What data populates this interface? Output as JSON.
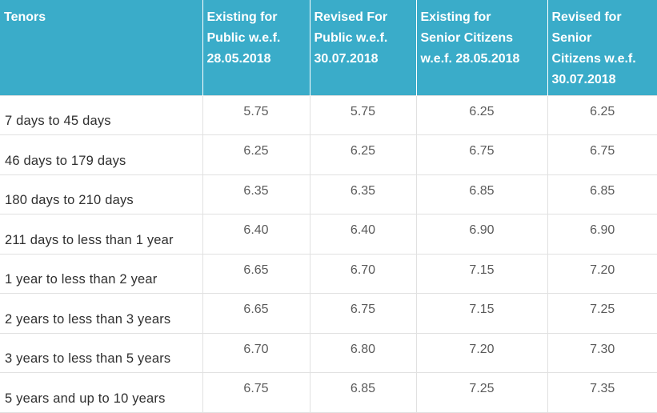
{
  "table": {
    "headers": [
      [
        "Tenors"
      ],
      [
        "Existing for",
        "Public w.e.f.",
        "28.05.2018"
      ],
      [
        "Revised For",
        "Public w.e.f.",
        "30.07.2018"
      ],
      [
        "Existing for",
        "Senior Citizens",
        "w.e.f. 28.05.2018"
      ],
      [
        "Revised for",
        "Senior",
        "Citizens w.e.f.",
        "30.07.2018"
      ]
    ],
    "rows": [
      {
        "tenor": "7 days to 45 days",
        "existing_public": "5.75",
        "revised_public": "5.75",
        "existing_senior": "6.25",
        "revised_senior": "6.25"
      },
      {
        "tenor": "46 days to 179 days",
        "existing_public": "6.25",
        "revised_public": "6.25",
        "existing_senior": "6.75",
        "revised_senior": "6.75"
      },
      {
        "tenor": "180 days to 210 days",
        "existing_public": "6.35",
        "revised_public": "6.35",
        "existing_senior": "6.85",
        "revised_senior": "6.85"
      },
      {
        "tenor": "211 days to less than 1 year",
        "existing_public": "6.40",
        "revised_public": "6.40",
        "existing_senior": "6.90",
        "revised_senior": "6.90"
      },
      {
        "tenor": "1 year to less than 2 year",
        "existing_public": "6.65",
        "revised_public": "6.70",
        "existing_senior": "7.15",
        "revised_senior": "7.20"
      },
      {
        "tenor": "2 years to less than 3 years",
        "existing_public": "6.65",
        "revised_public": "6.75",
        "existing_senior": "7.15",
        "revised_senior": "7.25"
      },
      {
        "tenor": "3 years to less than 5 years",
        "existing_public": "6.70",
        "revised_public": "6.80",
        "existing_senior": "7.20",
        "revised_senior": "7.30"
      },
      {
        "tenor": "5 years and up to 10 years",
        "existing_public": "6.75",
        "revised_public": "6.85",
        "existing_senior": "7.25",
        "revised_senior": "7.35"
      }
    ]
  },
  "colors": {
    "header_background": "#3aacc9",
    "header_text": "#ffffff",
    "grid_line": "#e1e1e1",
    "body_text": "#3d3d3d"
  }
}
